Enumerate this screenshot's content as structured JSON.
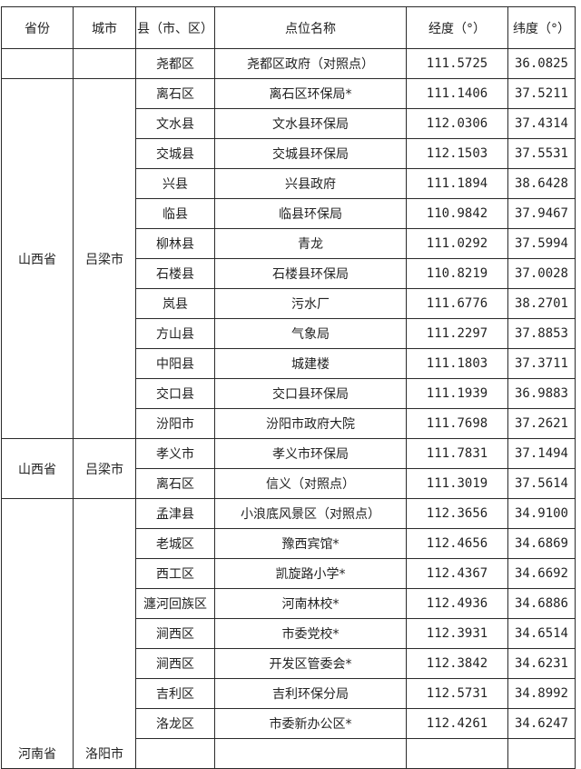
{
  "headers": [
    "省份",
    "城市",
    "县（市、区）",
    "点位名称",
    "经度（°）",
    "纬度（°）"
  ],
  "groups": [
    {
      "province": "",
      "city": "",
      "rows": [
        {
          "county": "尧都区",
          "site": "尧都区政府（对照点）",
          "lon": "111.5725",
          "lat": "36.0825"
        }
      ]
    },
    {
      "province": "山西省",
      "city": "吕梁市",
      "rows": [
        {
          "county": "离石区",
          "site": "离石区环保局*",
          "lon": "111.1406",
          "lat": "37.5211"
        },
        {
          "county": "文水县",
          "site": "文水县环保局",
          "lon": "112.0306",
          "lat": "37.4314"
        },
        {
          "county": "交城县",
          "site": "交城县环保局",
          "lon": "112.1503",
          "lat": "37.5531"
        },
        {
          "county": "兴县",
          "site": "兴县政府",
          "lon": "111.1894",
          "lat": "38.6428"
        },
        {
          "county": "临县",
          "site": "临县环保局",
          "lon": "110.9842",
          "lat": "37.9467"
        },
        {
          "county": "柳林县",
          "site": "青龙",
          "lon": "111.0292",
          "lat": "37.5994"
        },
        {
          "county": "石楼县",
          "site": "石楼县环保局",
          "lon": "110.8219",
          "lat": "37.0028"
        },
        {
          "county": "岚县",
          "site": "污水厂",
          "lon": "111.6776",
          "lat": "38.2701"
        },
        {
          "county": "方山县",
          "site": "气象局",
          "lon": "111.2297",
          "lat": "37.8853"
        },
        {
          "county": "中阳县",
          "site": "城建楼",
          "lon": "111.1803",
          "lat": "37.3711"
        },
        {
          "county": "交口县",
          "site": "交口县环保局",
          "lon": "111.1939",
          "lat": "36.9883"
        },
        {
          "county": "汾阳市",
          "site": "汾阳市政府大院",
          "lon": "111.7698",
          "lat": "37.2621"
        }
      ]
    },
    {
      "province": "山西省",
      "city": "吕梁市",
      "rows": [
        {
          "county": "孝义市",
          "site": "孝义市环保局",
          "lon": "111.7831",
          "lat": "37.1494"
        },
        {
          "county": "离石区",
          "site": "信义（对照点）",
          "lon": "111.3019",
          "lat": "37.5614"
        }
      ]
    },
    {
      "province": "河南省",
      "city": "洛阳市",
      "rows": [
        {
          "county": "孟津县",
          "site": "小浪底风景区（对照点）",
          "lon": "112.3656",
          "lat": "34.9100"
        },
        {
          "county": "老城区",
          "site": "豫西宾馆*",
          "lon": "112.4656",
          "lat": "34.6869"
        },
        {
          "county": "西工区",
          "site": "凯旋路小学*",
          "lon": "112.4367",
          "lat": "34.6692"
        },
        {
          "county": "瀍河回族区",
          "site": "河南林校*",
          "lon": "112.4936",
          "lat": "34.6886"
        },
        {
          "county": "涧西区",
          "site": "市委党校*",
          "lon": "112.3931",
          "lat": "34.6514"
        },
        {
          "county": "涧西区",
          "site": "开发区管委会*",
          "lon": "112.3842",
          "lat": "34.6231"
        },
        {
          "county": "吉利区",
          "site": "吉利环保分局",
          "lon": "112.5731",
          "lat": "34.8992"
        },
        {
          "county": "洛龙区",
          "site": "市委新办公区*",
          "lon": "112.4261",
          "lat": "34.6247"
        }
      ]
    }
  ]
}
